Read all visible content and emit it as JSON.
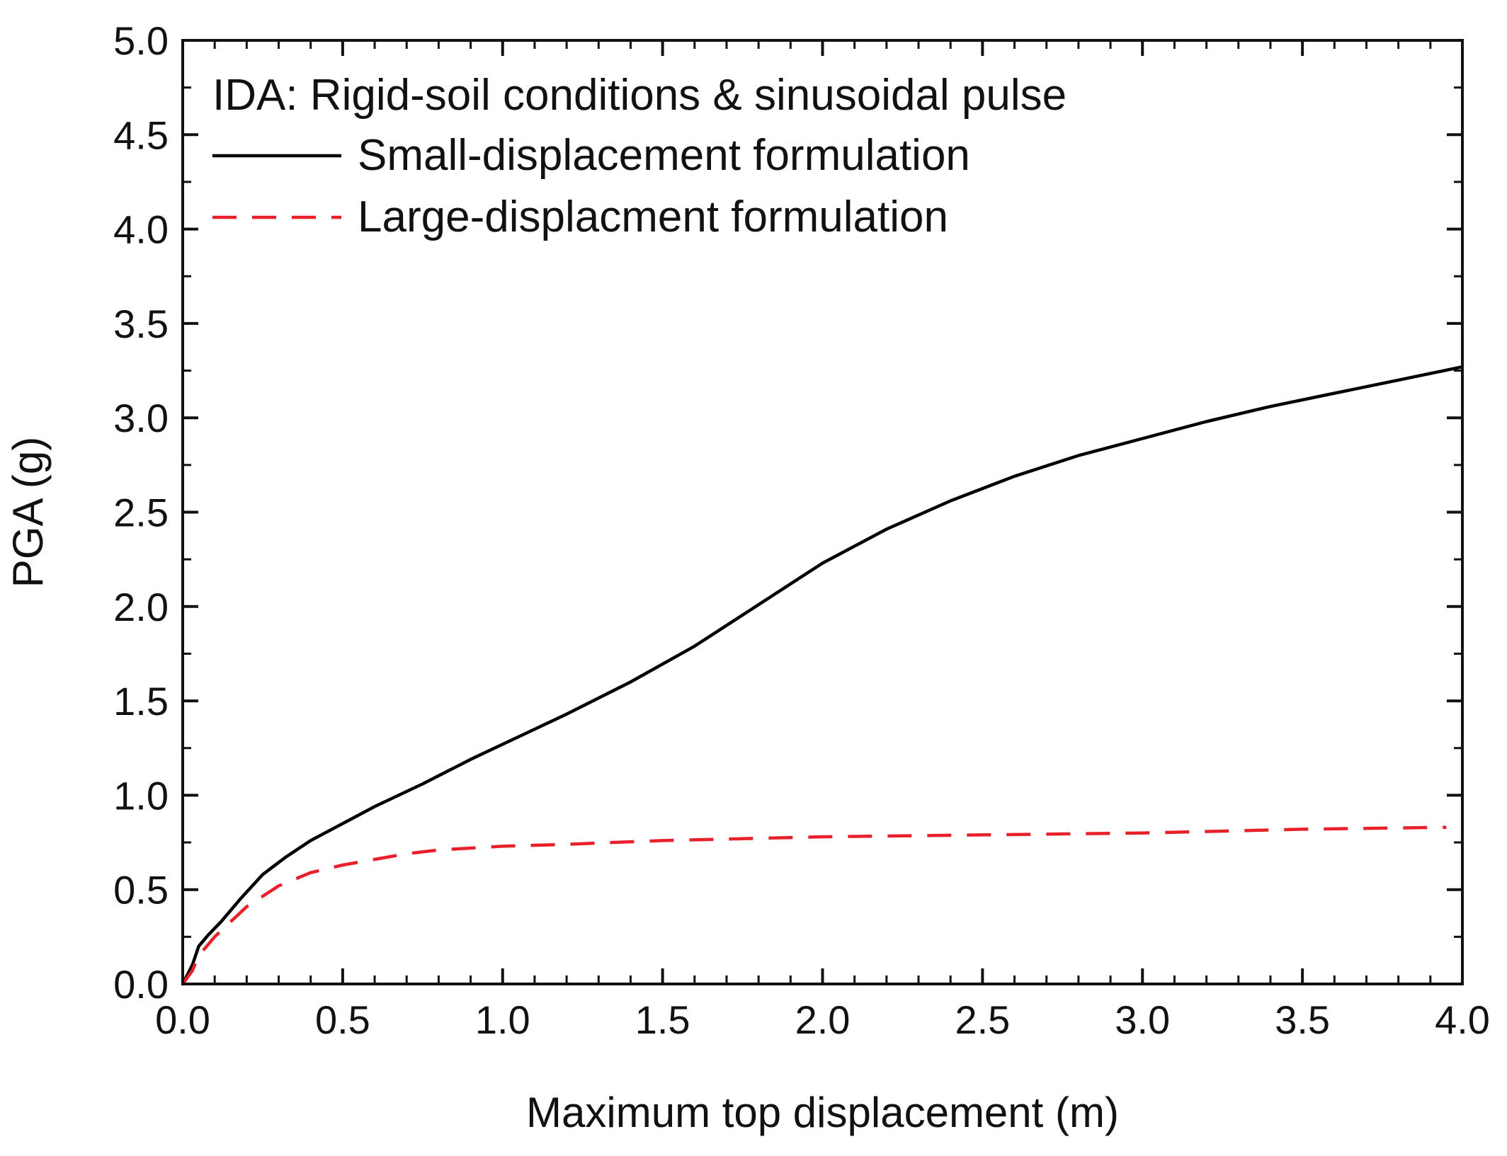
{
  "chart_data": {
    "type": "line",
    "title": "",
    "xlabel": "Maximum top displacement (m)",
    "ylabel": "PGA (g)",
    "xlim": [
      0,
      4
    ],
    "ylim": [
      0,
      5
    ],
    "xticks": [
      0,
      0.5,
      1,
      1.5,
      2,
      2.5,
      3,
      3.5,
      4
    ],
    "yticks": [
      0,
      0.5,
      1,
      1.5,
      2,
      2.5,
      3,
      3.5,
      4,
      4.5,
      5
    ],
    "xtick_labels": [
      "0.0",
      "0.5",
      "1.0",
      "1.5",
      "2.0",
      "2.5",
      "3.0",
      "3.5",
      "4.0"
    ],
    "ytick_labels": [
      "0.0",
      "0.5",
      "1.0",
      "1.5",
      "2.0",
      "2.5",
      "3.0",
      "3.5",
      "4.0",
      "4.5",
      "5.0"
    ],
    "x_minor_step": 0.1,
    "y_minor_step": 0.25,
    "grid": false,
    "legend_position": "top-left",
    "legend_header": "IDA: Rigid-soil conditions & sinusoidal pulse",
    "series": [
      {
        "name": "Small-displacement formulation",
        "color": "#000000",
        "style": "solid",
        "x": [
          0,
          0.03,
          0.05,
          0.08,
          0.12,
          0.18,
          0.25,
          0.32,
          0.4,
          0.5,
          0.6,
          0.75,
          0.9,
          1.0,
          1.2,
          1.4,
          1.6,
          1.8,
          2.0,
          2.2,
          2.4,
          2.6,
          2.8,
          3.0,
          3.2,
          3.4,
          3.6,
          3.8,
          4.0
        ],
        "y": [
          0,
          0.1,
          0.2,
          0.26,
          0.33,
          0.45,
          0.58,
          0.67,
          0.76,
          0.85,
          0.94,
          1.06,
          1.19,
          1.27,
          1.43,
          1.6,
          1.79,
          2.01,
          2.23,
          2.41,
          2.56,
          2.69,
          2.8,
          2.89,
          2.98,
          3.06,
          3.13,
          3.2,
          3.27
        ]
      },
      {
        "name": "Large-displacment formulation",
        "color": "#e8202a",
        "style": "dashed",
        "x": [
          0,
          0.03,
          0.05,
          0.1,
          0.15,
          0.2,
          0.3,
          0.4,
          0.5,
          0.6,
          0.7,
          0.8,
          1.0,
          1.2,
          1.5,
          2.0,
          2.5,
          3.0,
          3.5,
          3.95
        ],
        "y": [
          0,
          0.07,
          0.15,
          0.25,
          0.33,
          0.41,
          0.52,
          0.59,
          0.63,
          0.66,
          0.69,
          0.71,
          0.73,
          0.74,
          0.76,
          0.78,
          0.79,
          0.8,
          0.82,
          0.83
        ]
      }
    ]
  }
}
